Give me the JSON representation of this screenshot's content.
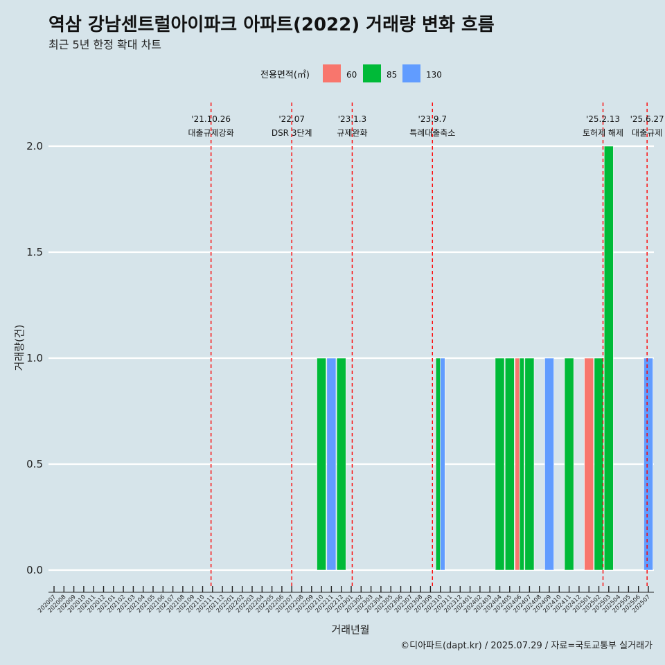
{
  "chart_data": {
    "type": "bar",
    "title": "역삼 강남센트럴아이파크 아파트(2022) 거래량 변화 흐름",
    "subtitle": "최근 5년 한정 확대 차트",
    "xlabel": "거래년월",
    "ylabel": "거래량(건)",
    "caption": "©디아파트(dapt.kr) / 2025.07.29 / 자료=국토교통부 실거래가",
    "ylim": [
      0,
      2.15
    ],
    "yticks": [
      "0.0",
      "0.5",
      "1.0",
      "1.5",
      "2.0"
    ],
    "grid": "horizontal",
    "legend": {
      "title": "전용면적(㎡)",
      "placement": "top",
      "entries": [
        {
          "label": "60",
          "color": "#f8766d"
        },
        {
          "label": "85",
          "color": "#00ba38"
        },
        {
          "label": "130",
          "color": "#619cff"
        }
      ]
    },
    "categories": [
      "202007",
      "202008",
      "202009",
      "202010",
      "202011",
      "202012",
      "202101",
      "202102",
      "202103",
      "202104",
      "202105",
      "202106",
      "202107",
      "202108",
      "202109",
      "202110",
      "202111",
      "202112",
      "202201",
      "202202",
      "202203",
      "202204",
      "202205",
      "202206",
      "202207",
      "202208",
      "202209",
      "202210",
      "202211",
      "202212",
      "202301",
      "202302",
      "202303",
      "202304",
      "202305",
      "202306",
      "202307",
      "202308",
      "202309",
      "202310",
      "202311",
      "202312",
      "202401",
      "202402",
      "202403",
      "202404",
      "202405",
      "202406",
      "202407",
      "202408",
      "202409",
      "202410",
      "202411",
      "202412",
      "202501",
      "202502",
      "202503",
      "202504",
      "202505",
      "202506",
      "202507"
    ],
    "series": [
      {
        "name": "60",
        "color": "#f8766d",
        "points": [
          {
            "month": "202406",
            "value": 1
          },
          {
            "month": "202501",
            "value": 1
          }
        ]
      },
      {
        "name": "85",
        "color": "#00ba38",
        "points": [
          {
            "month": "202210",
            "value": 1
          },
          {
            "month": "202212",
            "value": 1
          },
          {
            "month": "202310",
            "value": 1
          },
          {
            "month": "202404",
            "value": 1
          },
          {
            "month": "202405",
            "value": 1
          },
          {
            "month": "202406",
            "value": 1
          },
          {
            "month": "202407",
            "value": 1
          },
          {
            "month": "202411",
            "value": 1
          },
          {
            "month": "202502",
            "value": 1
          },
          {
            "month": "202503",
            "value": 2
          }
        ]
      },
      {
        "name": "130",
        "color": "#619cff",
        "points": [
          {
            "month": "202211",
            "value": 1
          },
          {
            "month": "202310",
            "value": 1
          },
          {
            "month": "202409",
            "value": 1
          },
          {
            "month": "202507",
            "value": 1
          }
        ]
      }
    ],
    "events": [
      {
        "date": "'21.10.26",
        "label": "대출규제강화",
        "month": "202110",
        "offset": 0.85
      },
      {
        "date": "'22.07",
        "label": "DSR 3단계",
        "month": "202207",
        "offset": 0.0
      },
      {
        "date": "'23.1.3",
        "label": "규제완화",
        "month": "202301",
        "offset": 0.1
      },
      {
        "date": "'23.9.7",
        "label": "특례대출축소",
        "month": "202309",
        "offset": 0.2
      },
      {
        "date": "'25.2.13",
        "label": "토허제 해제",
        "month": "202502",
        "offset": 0.42
      },
      {
        "date": "'25.6.27",
        "label": "대출규제",
        "month": "202506",
        "offset": 0.87
      }
    ]
  }
}
